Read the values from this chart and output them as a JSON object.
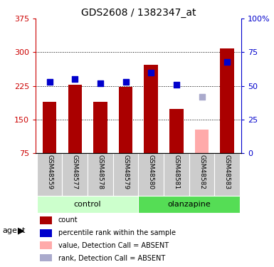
{
  "title": "GDS2608 / 1382347_at",
  "samples": [
    "GSM48559",
    "GSM48577",
    "GSM48578",
    "GSM48579",
    "GSM48580",
    "GSM48581",
    "GSM48582",
    "GSM48583"
  ],
  "groups": [
    "control",
    "control",
    "control",
    "control",
    "olanzapine",
    "olanzapine",
    "olanzapine",
    "olanzapine"
  ],
  "bar_values": [
    190,
    228,
    190,
    222,
    272,
    173,
    null,
    308
  ],
  "bar_absent_values": [
    null,
    null,
    null,
    null,
    null,
    null,
    127,
    null
  ],
  "rank_values": [
    53,
    55,
    52,
    53,
    60,
    51,
    null,
    68
  ],
  "rank_absent_values": [
    null,
    null,
    null,
    null,
    null,
    null,
    42,
    null
  ],
  "bar_color": "#aa0000",
  "rank_color": "#0000cc",
  "bar_absent_color": "#ffaaaa",
  "rank_absent_color": "#aaaacc",
  "ylim_left": [
    75,
    375
  ],
  "ylim_right": [
    0,
    100
  ],
  "yticks_left": [
    75,
    150,
    225,
    300,
    375
  ],
  "yticks_right": [
    0,
    25,
    50,
    75,
    100
  ],
  "ytick_labels_right": [
    "0",
    "25",
    "50",
    "75",
    "100%"
  ],
  "group_colors": {
    "control": "#ccffcc",
    "olanzapine": "#55dd55"
  },
  "left_axis_color": "#cc0000",
  "right_axis_color": "#0000cc",
  "bar_width": 0.55,
  "rank_marker_size": 40,
  "legend_items": [
    {
      "label": "count",
      "color": "#aa0000"
    },
    {
      "label": "percentile rank within the sample",
      "color": "#0000cc"
    },
    {
      "label": "value, Detection Call = ABSENT",
      "color": "#ffaaaa"
    },
    {
      "label": "rank, Detection Call = ABSENT",
      "color": "#aaaacc"
    }
  ]
}
